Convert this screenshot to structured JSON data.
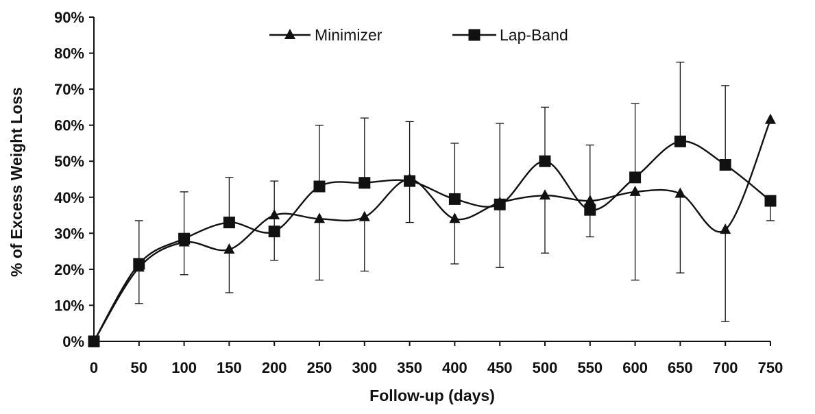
{
  "chart_data": {
    "type": "line",
    "title": "",
    "xlabel": "Follow-up (days)",
    "ylabel": "% of Excess Weight Loss",
    "x": [
      0,
      50,
      100,
      150,
      200,
      250,
      300,
      350,
      400,
      450,
      500,
      550,
      600,
      650,
      700,
      750
    ],
    "x_tick_labels": [
      "0",
      "50",
      "100",
      "150",
      "200",
      "250",
      "300",
      "350",
      "400",
      "450",
      "500",
      "550",
      "600",
      "650",
      "700",
      "750"
    ],
    "y_tick_labels": [
      "0%",
      "10%",
      "20%",
      "30%",
      "40%",
      "50%",
      "60%",
      "70%",
      "80%",
      "90%"
    ],
    "xlim": [
      0,
      750
    ],
    "ylim": [
      0,
      90
    ],
    "y_unit": "percent",
    "grid": false,
    "legend_position": "top-center",
    "line_color": "#111111",
    "smooth_lines": true,
    "series": [
      {
        "name": "Minimizer",
        "marker": "triangle",
        "values": [
          0,
          20.5,
          27.5,
          25.5,
          35,
          34,
          34.5,
          45,
          34,
          38.5,
          40.5,
          39,
          41.5,
          41,
          31,
          61.5
        ],
        "error_low": [
          null,
          null,
          18.5,
          13.5,
          22.5,
          17,
          19.5,
          33,
          21.5,
          20.5,
          24.5,
          29,
          17,
          19,
          5.5,
          null
        ],
        "error_high": [
          null,
          null,
          null,
          null,
          44.5,
          null,
          null,
          null,
          null,
          60.5,
          null,
          null,
          null,
          null,
          null,
          null
        ]
      },
      {
        "name": "Lap-Band",
        "marker": "square",
        "values": [
          0,
          21.5,
          28.5,
          33,
          30.5,
          43,
          44,
          44.5,
          39.5,
          38,
          50,
          36.5,
          45.5,
          55.5,
          49,
          39
        ],
        "error_low": [
          null,
          10.5,
          null,
          null,
          null,
          null,
          null,
          null,
          null,
          null,
          null,
          null,
          null,
          null,
          null,
          33.5
        ],
        "error_high": [
          null,
          33.5,
          41.5,
          45.5,
          null,
          60,
          62,
          61,
          55,
          null,
          65,
          54.5,
          66,
          77.5,
          71,
          null
        ]
      }
    ]
  }
}
